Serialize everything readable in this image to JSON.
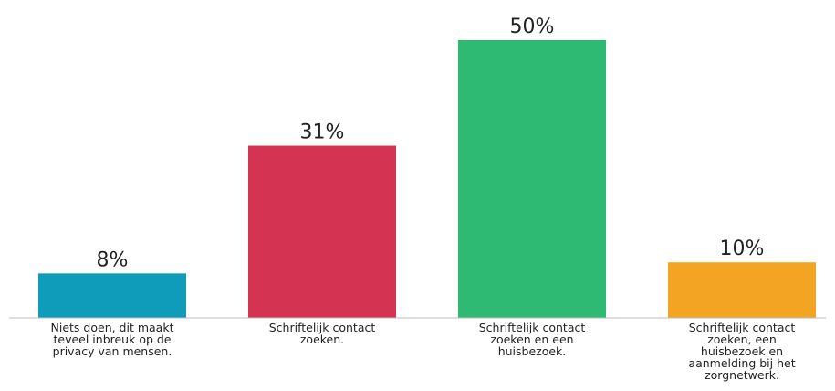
{
  "chart_data": {
    "type": "bar",
    "title": "",
    "xlabel": "",
    "ylabel": "",
    "ylim": [
      0,
      50
    ],
    "grid": false,
    "legend": "none",
    "categories": [
      "Niets doen, dit maakt teveel inbreuk op de privacy van mensen.",
      "Schriftelijk contact zoeken.",
      "Schriftelijk contact zoeken en een huisbezoek.",
      "Schriftelijk contact zoeken, een huisbezoek en aanmelding bij het zorgnetwerk."
    ],
    "category_lines": [
      [
        "Niets doen, dit maakt",
        "teveel inbreuk op de",
        "privacy van mensen."
      ],
      [
        "Schriftelijk contact",
        "zoeken."
      ],
      [
        "Schriftelijk contact",
        "zoeken en een",
        "huisbezoek."
      ],
      [
        "Schriftelijk contact",
        "zoeken, een",
        "huisbezoek en",
        "aanmelding bij het",
        "zorgnetwerk."
      ]
    ],
    "values": [
      8,
      31,
      50,
      10
    ],
    "data_labels": [
      "8%",
      "31%",
      "50%",
      "10%"
    ],
    "colors": [
      "#0f9cbb",
      "#d43451",
      "#2fba74",
      "#f2a422"
    ]
  }
}
